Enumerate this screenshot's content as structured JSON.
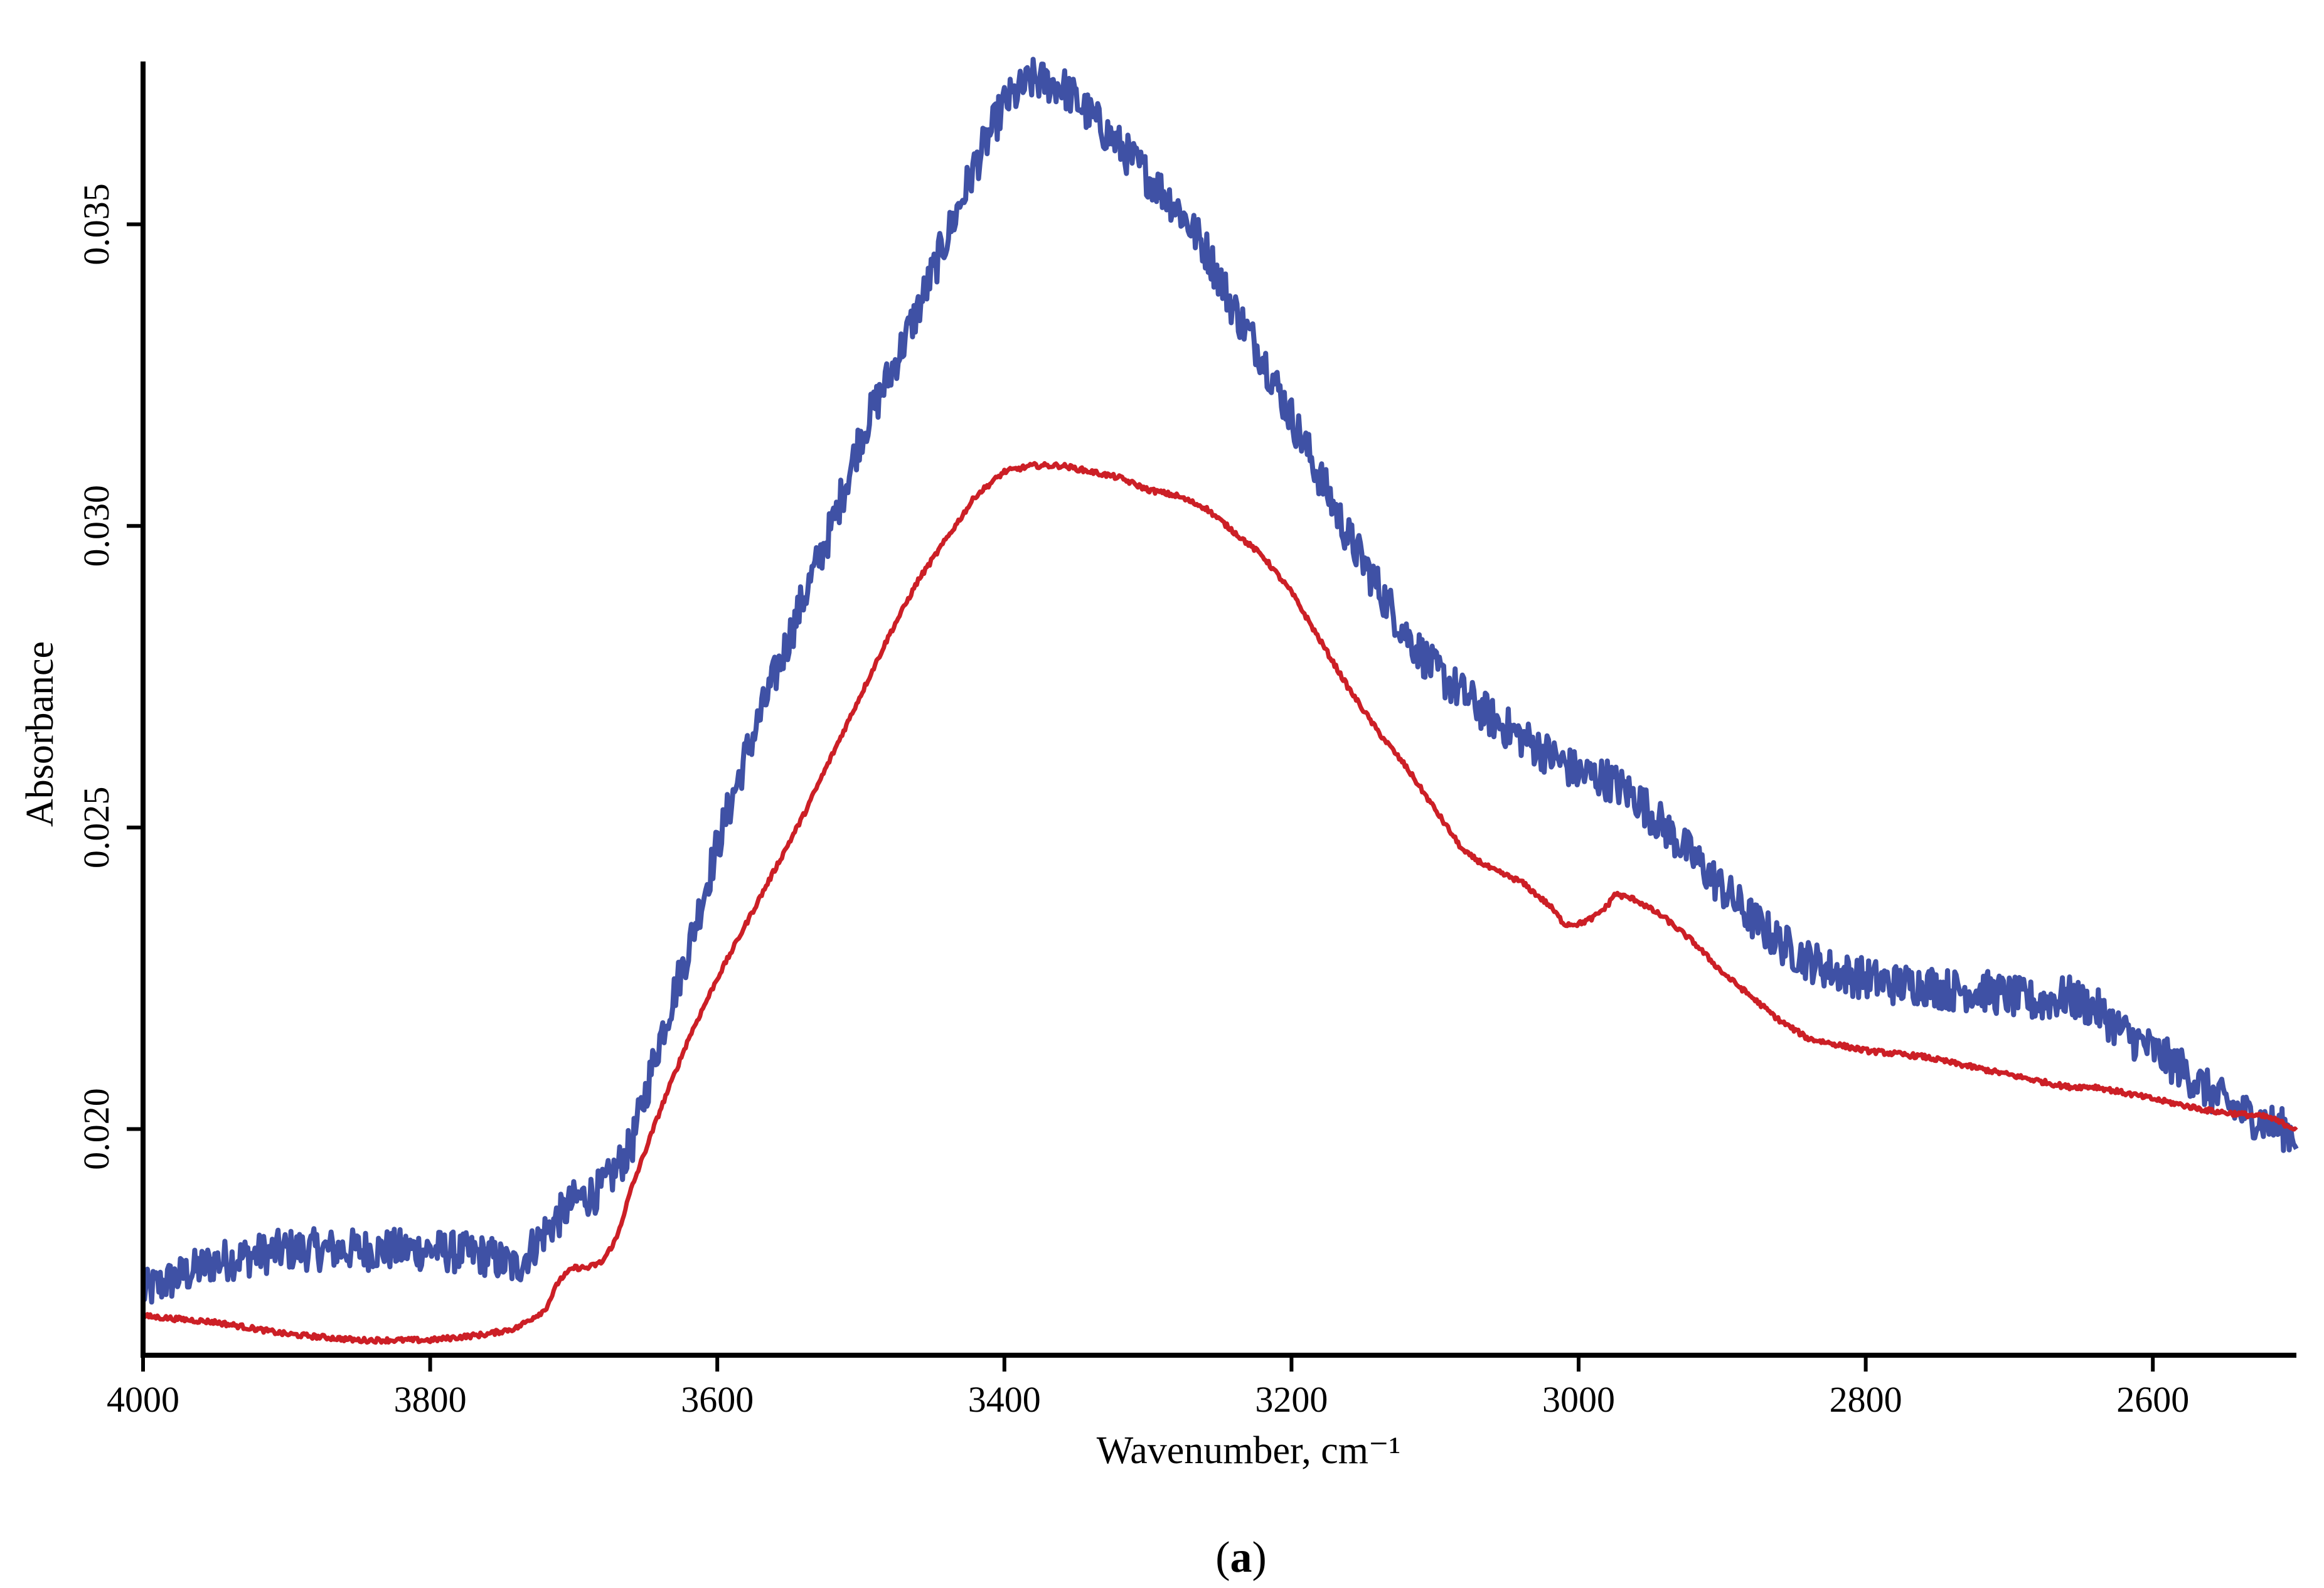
{
  "chart_data": {
    "type": "line",
    "title": "",
    "xlabel": "Wavenumber, cm⁻¹",
    "ylabel": "Absorbance",
    "xlim": [
      4000,
      2500
    ],
    "ylim": [
      0.01625,
      0.0377
    ],
    "x_reversed": true,
    "grid": false,
    "legend": "none",
    "x_ticks": [
      4000,
      3800,
      3600,
      3400,
      3200,
      3000,
      2800,
      2600
    ],
    "x_tick_labels": [
      "4000",
      "3800",
      "3600",
      "3400",
      "3200",
      "3000",
      "2800",
      "2600"
    ],
    "y_ticks": [
      0.02,
      0.025,
      0.03,
      0.035
    ],
    "y_tick_labels": [
      "0.020",
      "0.025",
      "0.030",
      "0.035"
    ],
    "series": [
      {
        "name": "blue spectrum",
        "color": "#3f51a5",
        "noise": 0.00035,
        "x": [
          4000,
          3950,
          3900,
          3850,
          3800,
          3760,
          3740,
          3720,
          3700,
          3680,
          3660,
          3640,
          3620,
          3600,
          3580,
          3560,
          3540,
          3520,
          3500,
          3480,
          3460,
          3440,
          3420,
          3400,
          3380,
          3360,
          3340,
          3320,
          3300,
          3280,
          3260,
          3240,
          3220,
          3200,
          3180,
          3160,
          3140,
          3120,
          3100,
          3080,
          3060,
          3040,
          3020,
          3000,
          2980,
          2960,
          2940,
          2920,
          2900,
          2880,
          2860,
          2840,
          2820,
          2800,
          2780,
          2760,
          2740,
          2720,
          2700,
          2680,
          2660,
          2640,
          2620,
          2600,
          2580,
          2560,
          2540,
          2520,
          2500
        ],
        "y": [
          0.0173,
          0.0178,
          0.018,
          0.018,
          0.018,
          0.0179,
          0.0177,
          0.0183,
          0.0188,
          0.019,
          0.0197,
          0.0215,
          0.023,
          0.0247,
          0.0262,
          0.0275,
          0.0288,
          0.03,
          0.0315,
          0.0325,
          0.0336,
          0.0348,
          0.036,
          0.037,
          0.0374,
          0.0373,
          0.0368,
          0.0363,
          0.0358,
          0.0353,
          0.0346,
          0.0336,
          0.0328,
          0.0318,
          0.0308,
          0.0298,
          0.029,
          0.0282,
          0.0276,
          0.0272,
          0.0268,
          0.0265,
          0.0262,
          0.0259,
          0.0258,
          0.0255,
          0.025,
          0.0245,
          0.024,
          0.0235,
          0.0231,
          0.0228,
          0.0226,
          0.0225,
          0.0224,
          0.0224,
          0.0223,
          0.0223,
          0.0222,
          0.0221,
          0.0222,
          0.022,
          0.0216,
          0.0213,
          0.021,
          0.0206,
          0.0203,
          0.0201,
          0.0199
        ]
      },
      {
        "name": "red spectrum",
        "color": "#cc1f26",
        "noise": 4e-05,
        "x": [
          4000,
          3950,
          3900,
          3850,
          3800,
          3760,
          3740,
          3720,
          3710,
          3700,
          3690,
          3680,
          3670,
          3660,
          3640,
          3620,
          3600,
          3580,
          3560,
          3540,
          3520,
          3500,
          3480,
          3460,
          3440,
          3420,
          3400,
          3380,
          3360,
          3340,
          3320,
          3300,
          3280,
          3260,
          3240,
          3220,
          3200,
          3180,
          3160,
          3140,
          3120,
          3100,
          3080,
          3060,
          3040,
          3020,
          3010,
          3000,
          2990,
          2980,
          2975,
          2960,
          2940,
          2920,
          2900,
          2880,
          2860,
          2840,
          2820,
          2800,
          2760,
          2720,
          2680,
          2660,
          2640,
          2600,
          2560,
          2520,
          2500
        ],
        "y": [
          0.0169,
          0.0168,
          0.0166,
          0.0165,
          0.0165,
          0.0166,
          0.0167,
          0.017,
          0.0175,
          0.0177,
          0.0177,
          0.0178,
          0.0182,
          0.019,
          0.0203,
          0.0215,
          0.0225,
          0.0234,
          0.0243,
          0.0252,
          0.0262,
          0.0272,
          0.0282,
          0.0291,
          0.0298,
          0.0305,
          0.0309,
          0.031,
          0.031,
          0.0309,
          0.0308,
          0.0306,
          0.0305,
          0.0303,
          0.0299,
          0.0295,
          0.0289,
          0.0281,
          0.0273,
          0.0266,
          0.026,
          0.0253,
          0.0246,
          0.0243,
          0.0241,
          0.0237,
          0.0234,
          0.0234,
          0.0235,
          0.0237,
          0.0239,
          0.0238,
          0.0235,
          0.0231,
          0.0226,
          0.0222,
          0.0218,
          0.0215,
          0.0214,
          0.0213,
          0.0212,
          0.021,
          0.0208,
          0.0207,
          0.0207,
          0.0205,
          0.0203,
          0.0202,
          0.02
        ]
      }
    ]
  },
  "caption": {
    "open_paren": "(",
    "letter": "a",
    "close_paren": ")"
  }
}
